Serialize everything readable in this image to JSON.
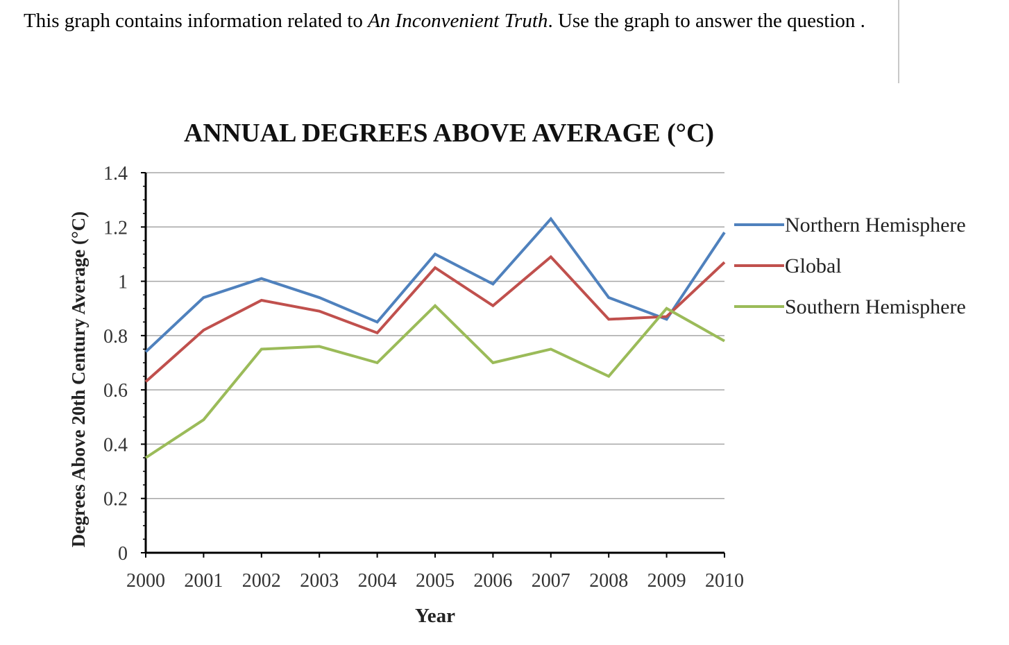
{
  "intro": {
    "before": "This graph contains information related to ",
    "title_italic": "An Inconvenient Truth",
    "after": ". Use the graph to answer the question ."
  },
  "chart_data": {
    "type": "line",
    "title": "ANNUAL DEGREES ABOVE AVERAGE (°C)",
    "xlabel": "Year",
    "ylabel": "Degrees Above  20th Century Average (°C)",
    "x": [
      "2000",
      "2001",
      "2002",
      "2003",
      "2004",
      "2005",
      "2006",
      "2007",
      "2008",
      "2009",
      "2010"
    ],
    "ylim": [
      0,
      1.4
    ],
    "yticks": [
      "0",
      "0.2",
      "0.4",
      "0.6",
      "0.8",
      "1",
      "1.2",
      "1.4"
    ],
    "grid": true,
    "legend_position": "right",
    "series": [
      {
        "name": "Northern Hemisphere",
        "color": "#4f81bd",
        "values": [
          0.74,
          0.94,
          1.01,
          0.94,
          0.85,
          1.1,
          0.99,
          1.23,
          0.94,
          0.86,
          1.18
        ]
      },
      {
        "name": "Global",
        "color": "#c0504d",
        "values": [
          0.63,
          0.82,
          0.93,
          0.89,
          0.81,
          1.05,
          0.91,
          1.09,
          0.86,
          0.87,
          1.07
        ]
      },
      {
        "name": "Southern Hemisphere",
        "color": "#9bbb59",
        "values": [
          0.35,
          0.49,
          0.75,
          0.76,
          0.7,
          0.91,
          0.7,
          0.75,
          0.65,
          0.9,
          0.78
        ]
      }
    ]
  }
}
